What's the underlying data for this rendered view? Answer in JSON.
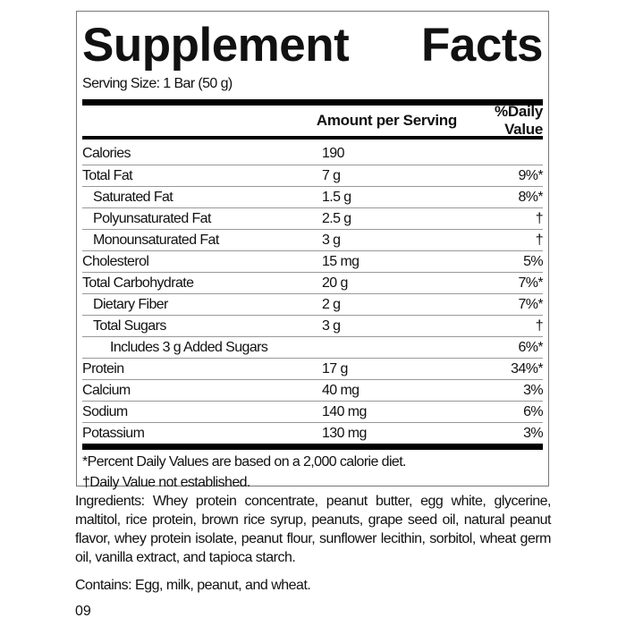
{
  "title_word1": "Supplement",
  "title_word2": "Facts",
  "serving_size": "Serving Size: 1 Bar (50 g)",
  "header": {
    "amount": "Amount per Serving",
    "dv": "%Daily Value"
  },
  "rows": [
    {
      "name": "Calories",
      "amount": "190",
      "dv": "",
      "indent": 0
    },
    {
      "name": "Total Fat",
      "amount": "7 g",
      "dv": "9%*",
      "indent": 0
    },
    {
      "name": "Saturated Fat",
      "amount": "1.5 g",
      "dv": "8%*",
      "indent": 1
    },
    {
      "name": "Polyunsaturated Fat",
      "amount": "2.5 g",
      "dv": "†",
      "indent": 1
    },
    {
      "name": "Monounsaturated Fat",
      "amount": "3 g",
      "dv": "†",
      "indent": 1
    },
    {
      "name": "Cholesterol",
      "amount": "15 mg",
      "dv": "5%",
      "indent": 0
    },
    {
      "name": "Total Carbohydrate",
      "amount": "20 g",
      "dv": "7%*",
      "indent": 0
    },
    {
      "name": "Dietary Fiber",
      "amount": "2 g",
      "dv": "7%*",
      "indent": 1
    },
    {
      "name": "Total Sugars",
      "amount": "3 g",
      "dv": "†",
      "indent": 1
    },
    {
      "name": "Includes 3 g Added Sugars",
      "amount": "",
      "dv": "6%*",
      "indent": 2
    },
    {
      "name": "Protein",
      "amount": "17 g",
      "dv": "34%*",
      "indent": 0
    },
    {
      "name": "Calcium",
      "amount": "40 mg",
      "dv": "3%",
      "indent": 0
    },
    {
      "name": "Sodium",
      "amount": "140 mg",
      "dv": "6%",
      "indent": 0
    },
    {
      "name": "Potassium",
      "amount": "130 mg",
      "dv": "3%",
      "indent": 0
    }
  ],
  "footnotes": [
    "*Percent Daily Values are based on a 2,000 calorie diet.",
    "†Daily Value not established."
  ],
  "ingredients": "Ingredients: Whey protein concentrate, peanut butter, egg white, glycerine, maltitol, rice protein, brown rice syrup, peanuts, grape seed oil, natural peanut flavor, whey protein isolate, peanut flour, sunflower lecithin, sorbitol, wheat germ oil, vanilla extract, and tapioca starch.",
  "contains": "Contains: Egg, milk, peanut, and wheat.",
  "code": "09"
}
